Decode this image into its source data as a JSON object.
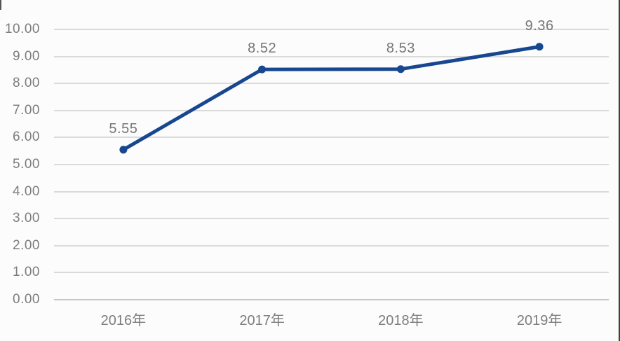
{
  "chart_data": {
    "type": "line",
    "categories": [
      "2016年",
      "2017年",
      "2018年",
      "2019年"
    ],
    "series": [
      {
        "name": "series-1",
        "values": [
          5.55,
          8.52,
          8.53,
          9.36
        ]
      }
    ],
    "data_labels": [
      "5.55",
      "8.52",
      "8.53",
      "9.36"
    ],
    "y_ticks": [
      "10.00",
      "9.00",
      "8.00",
      "7.00",
      "6.00",
      "5.00",
      "4.00",
      "3.00",
      "2.00",
      "1.00",
      "0.00"
    ],
    "y_tick_values": [
      10,
      9,
      8,
      7,
      6,
      5,
      4,
      3,
      2,
      1,
      0
    ],
    "ylim": [
      0,
      10
    ],
    "title": "",
    "xlabel": "",
    "ylabel": "",
    "grid": true,
    "legend_position": "none",
    "colors": {
      "line": "#17478F",
      "marker": "#17478F",
      "grid": "#dadada",
      "axis_text": "#7d7d7d",
      "data_label_text": "#757575",
      "background": "#fcfcfc",
      "right_edge": "#3f3f3f"
    }
  }
}
